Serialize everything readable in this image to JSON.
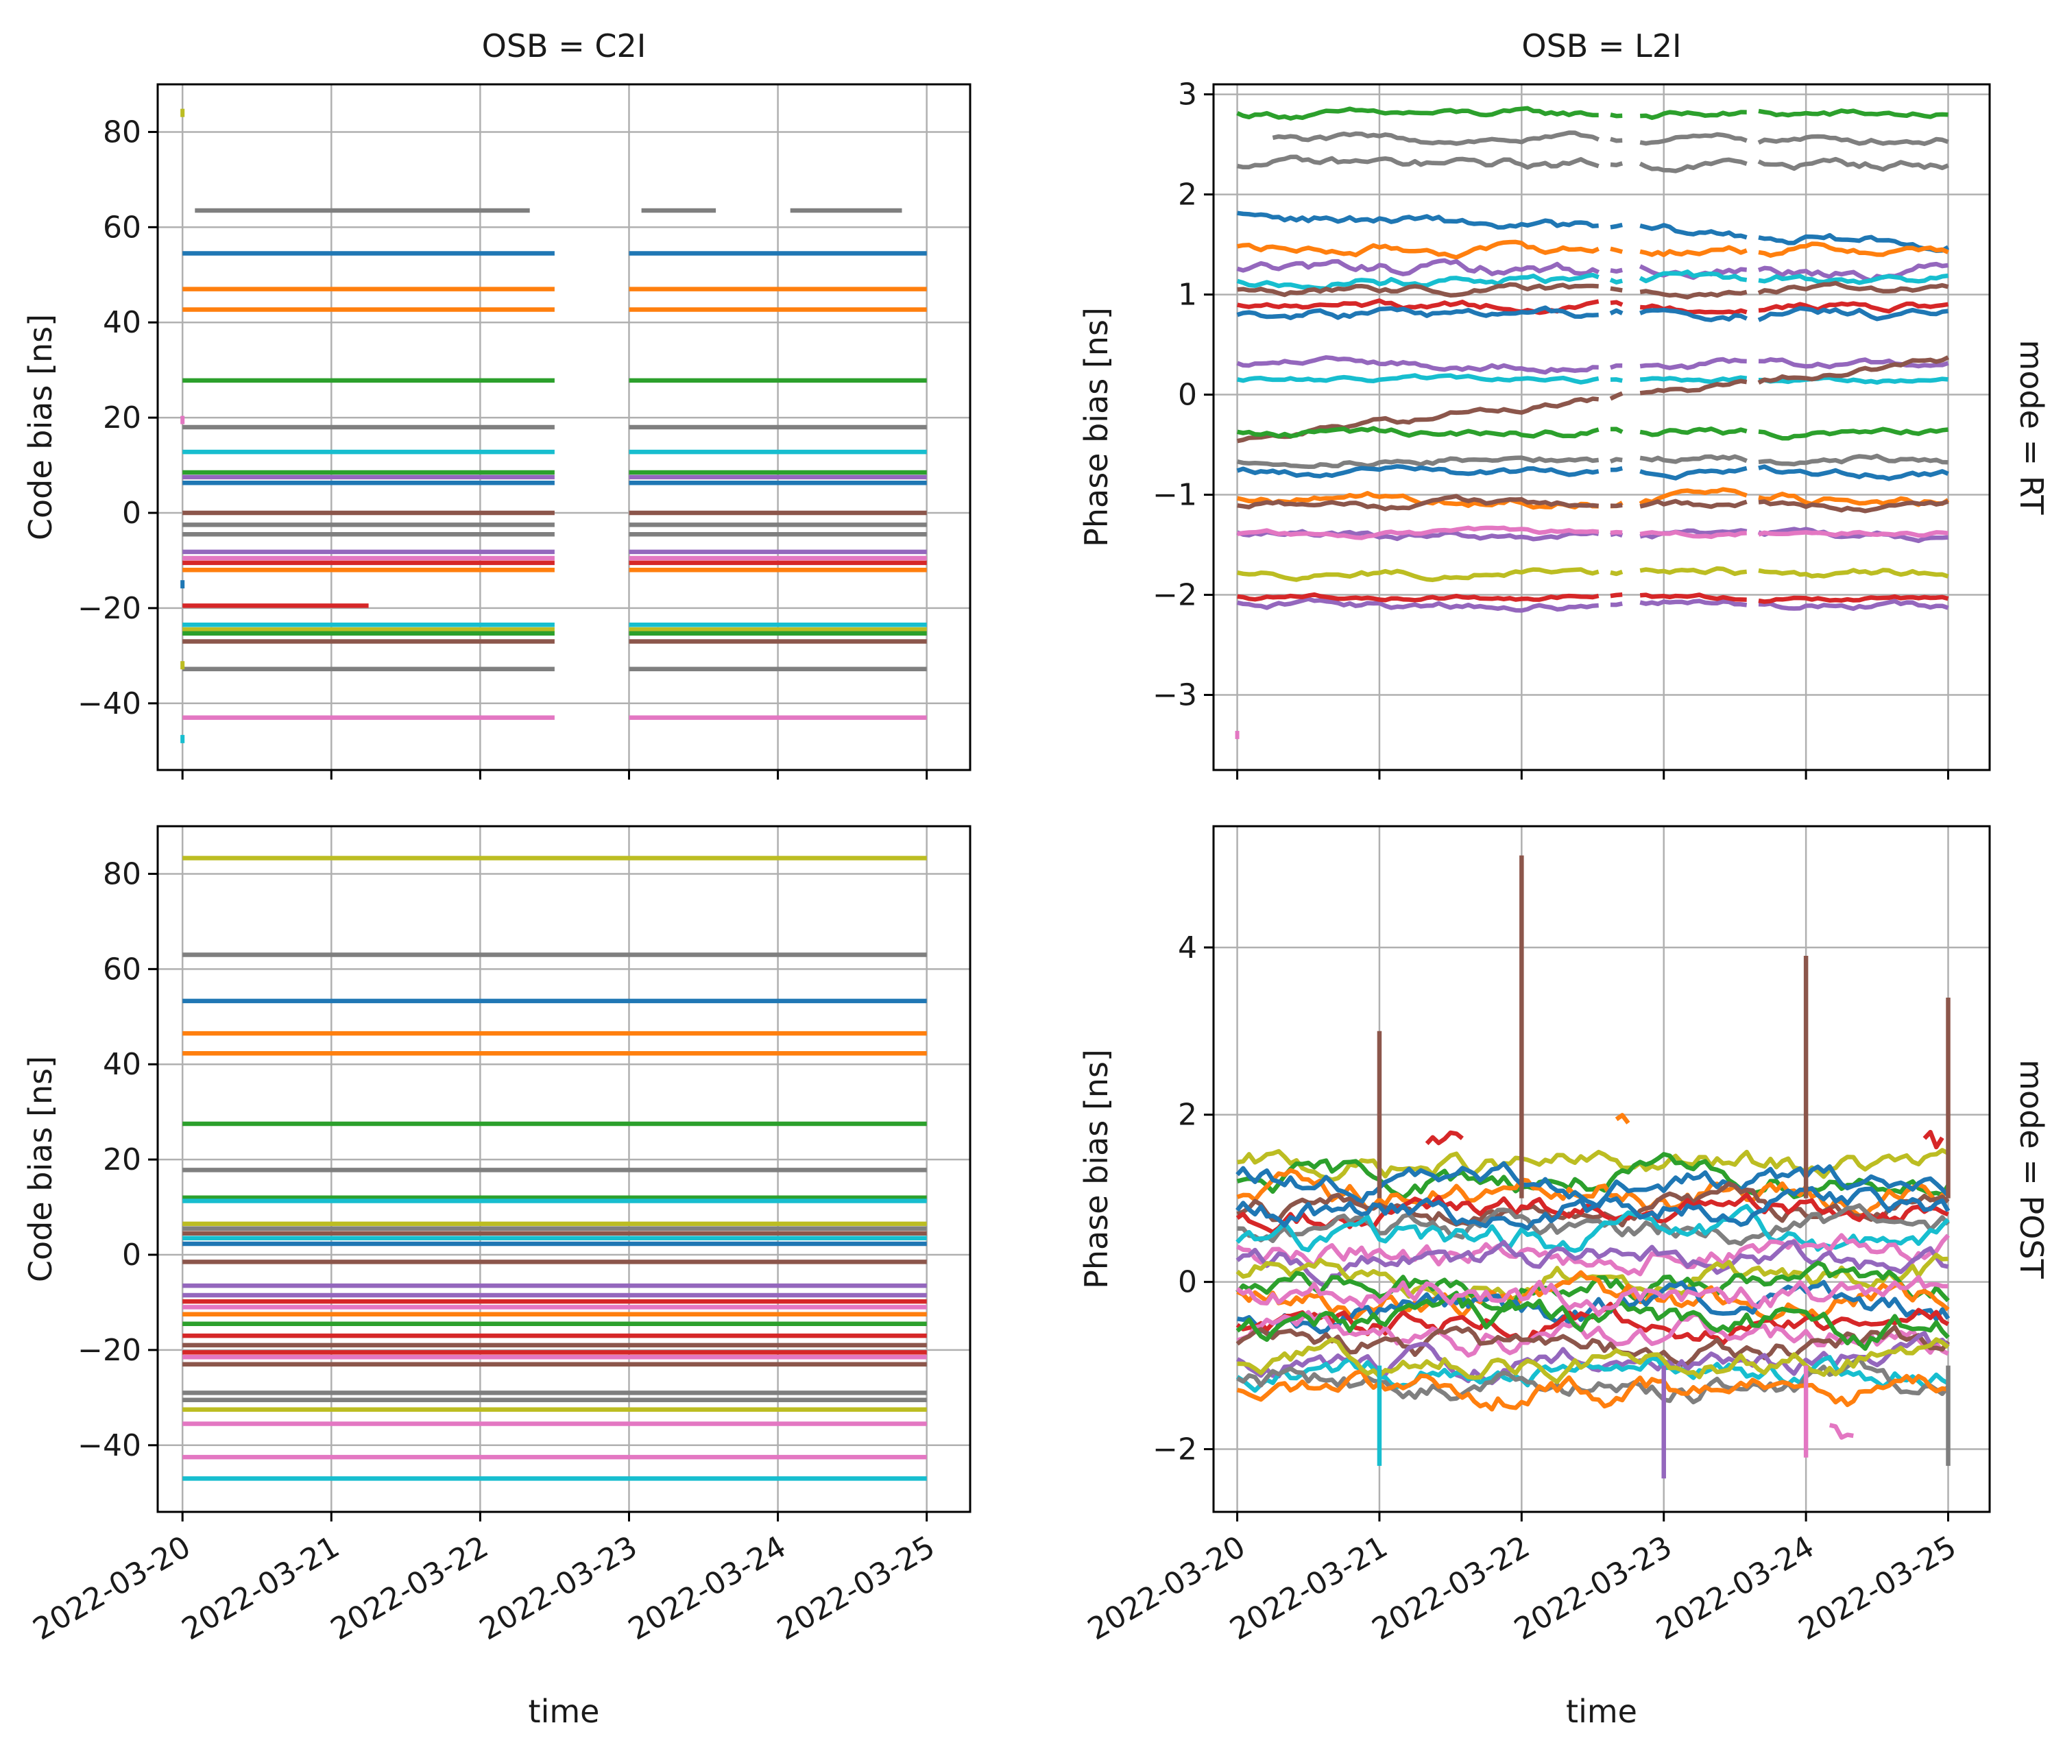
{
  "figure": {
    "palette": [
      "#1f77b4",
      "#ff7f0e",
      "#2ca02c",
      "#d62728",
      "#9467bd",
      "#8c564b",
      "#e377c2",
      "#7f7f7f",
      "#bcbd22",
      "#17becf"
    ]
  },
  "chart_data": [
    {
      "type": "line",
      "panel": "top-left",
      "title": "OSB = C2I",
      "row_title": "",
      "xlabel": "",
      "ylabel": "Code bias [ns]",
      "x_ticks": [],
      "yticks": [
        80,
        60,
        40,
        20,
        0,
        -20,
        -40
      ],
      "ytick_labels": [
        "80",
        "60",
        "40",
        "20",
        "0",
        "−20",
        "−40"
      ],
      "xlim": [
        "2022-03-19 20:00",
        "2022-03-25 07:00"
      ],
      "ylim": [
        -54,
        90
      ],
      "grid": true,
      "x_gaps": [
        [
          "2022-03-22 13:00",
          "2022-03-22 16:00"
        ],
        [
          "2022-03-22 17:00",
          "2022-03-22 22:00"
        ],
        [
          "2022-03-23 14:00",
          "2022-03-23 16:00"
        ],
        [
          "2022-03-23 19:00",
          "2022-03-23 21:00"
        ]
      ],
      "series": [
        {
          "color": "#7f7f7f",
          "x_start": "2022-03-20 02:00",
          "value": 63.5
        },
        {
          "color": "#1f77b4",
          "value": 54.5
        },
        {
          "color": "#ff7f0e",
          "value": 47
        },
        {
          "color": "#ff7f0e",
          "value": 42.7
        },
        {
          "color": "#2ca02c",
          "value": 27.8
        },
        {
          "color": "#7f7f7f",
          "value": 18
        },
        {
          "color": "#17becf",
          "value": 12.8
        },
        {
          "color": "#2ca02c",
          "value": 8.5
        },
        {
          "color": "#9467bd",
          "value": 7.5
        },
        {
          "color": "#1f77b4",
          "value": 6.3
        },
        {
          "color": "#8c564b",
          "value": 0
        },
        {
          "color": "#7f7f7f",
          "value": -2.5
        },
        {
          "color": "#7f7f7f",
          "value": -4.5
        },
        {
          "color": "#9467bd",
          "value": -8.2
        },
        {
          "color": "#e377c2",
          "value": -9.5
        },
        {
          "color": "#d62728",
          "value": -10.5
        },
        {
          "color": "#ff7f0e",
          "value": -12
        },
        {
          "color": "#d62728",
          "value": -19.5,
          "x_end": "2022-03-21 07:00"
        },
        {
          "color": "#17becf",
          "value": -23.5
        },
        {
          "color": "#bcbd22",
          "value": -24.5
        },
        {
          "color": "#2ca02c",
          "value": -25.3
        },
        {
          "color": "#8c564b",
          "value": -27
        },
        {
          "color": "#7f7f7f",
          "value": -32.8
        },
        {
          "color": "#e377c2",
          "value": -43
        }
      ],
      "isolated_points": [
        {
          "x": "2022-03-20 00:00",
          "y": 84,
          "color": "#bcbd22"
        },
        {
          "x": "2022-03-20 00:00",
          "y": 19.5,
          "color": "#e377c2"
        },
        {
          "x": "2022-03-20 00:00",
          "y": -15,
          "color": "#1f77b4"
        },
        {
          "x": "2022-03-20 00:00",
          "y": -32,
          "color": "#bcbd22"
        },
        {
          "x": "2022-03-20 00:00",
          "y": -47.5,
          "color": "#17becf"
        }
      ]
    },
    {
      "type": "line",
      "panel": "top-right",
      "title": "OSB = L2I",
      "row_title": "mode = RT",
      "xlabel": "",
      "ylabel": "Phase bias [ns]",
      "x_ticks": [],
      "yticks": [
        3,
        2,
        1,
        0,
        -1,
        -2,
        -3
      ],
      "ytick_labels": [
        "3",
        "2",
        "1",
        "0",
        "−1",
        "−2",
        "−3"
      ],
      "xlim": [
        "2022-03-19 20:00",
        "2022-03-25 07:00"
      ],
      "ylim": [
        -3.75,
        3.1
      ],
      "grid": true,
      "x_gaps": [
        [
          "2022-03-22 13:00",
          "2022-03-22 15:00"
        ],
        [
          "2022-03-22 17:00",
          "2022-03-22 20:00"
        ],
        [
          "2022-03-23 14:00",
          "2022-03-23 16:00"
        ],
        [
          "2022-03-23 18:00",
          "2022-03-23 19:00"
        ]
      ],
      "series": [
        {
          "color": "#2ca02c",
          "value": 2.8,
          "noise": 0.03
        },
        {
          "color": "#7f7f7f",
          "value": 2.55,
          "noise": 0.03,
          "x_start": "2022-03-20 06:00"
        },
        {
          "color": "#7f7f7f",
          "value": 2.3,
          "noise": 0.04
        },
        {
          "color": "#1f77b4",
          "value": 1.8,
          "noise": 0.04,
          "end_value": 1.5
        },
        {
          "color": "#ff7f0e",
          "value": 1.45,
          "noise": 0.04
        },
        {
          "color": "#9467bd",
          "value": 1.25,
          "noise": 0.05
        },
        {
          "color": "#17becf",
          "value": 1.15,
          "noise": 0.04
        },
        {
          "color": "#8c564b",
          "value": 1.05,
          "noise": 0.03
        },
        {
          "color": "#d62728",
          "value": 0.88,
          "noise": 0.03
        },
        {
          "color": "#1f77b4",
          "value": 0.8,
          "noise": 0.04
        },
        {
          "color": "#9467bd",
          "value": 0.3,
          "noise": 0.03
        },
        {
          "color": "#17becf",
          "value": 0.15,
          "noise": 0.02
        },
        {
          "color": "#8c564b",
          "value": -0.45,
          "noise": 0.03,
          "end_value": 0.35
        },
        {
          "color": "#2ca02c",
          "value": -0.38,
          "noise": 0.03
        },
        {
          "color": "#7f7f7f",
          "value": -0.65,
          "noise": 0.03
        },
        {
          "color": "#1f77b4",
          "value": -0.78,
          "noise": 0.03
        },
        {
          "color": "#ff7f0e",
          "value": -1.05,
          "noise": 0.04
        },
        {
          "color": "#8c564b",
          "value": -1.1,
          "noise": 0.03
        },
        {
          "color": "#9467bd",
          "value": -1.4,
          "noise": 0.03
        },
        {
          "color": "#e377c2",
          "value": -1.38,
          "noise": 0.02
        },
        {
          "color": "#bcbd22",
          "value": -1.78,
          "noise": 0.03
        },
        {
          "color": "#9467bd",
          "value": -2.1,
          "noise": 0.03
        },
        {
          "color": "#d62728",
          "value": -2.03,
          "noise": 0.02
        }
      ],
      "isolated_points": [
        {
          "x": "2022-03-20 00:00",
          "y": -3.4,
          "color": "#e377c2"
        }
      ]
    },
    {
      "type": "line",
      "panel": "bottom-left",
      "title": "",
      "row_title": "",
      "xlabel": "time",
      "ylabel": "Code bias [ns]",
      "x_ticks": [
        "2022-03-20",
        "2022-03-21",
        "2022-03-22",
        "2022-03-23",
        "2022-03-24",
        "2022-03-25"
      ],
      "yticks": [
        80,
        60,
        40,
        20,
        0,
        -20,
        -40
      ],
      "ytick_labels": [
        "80",
        "60",
        "40",
        "20",
        "0",
        "−20",
        "−40"
      ],
      "xlim": [
        "2022-03-19 20:00",
        "2022-03-25 07:00"
      ],
      "ylim": [
        -54,
        90
      ],
      "grid": true,
      "x_gaps": [],
      "series": [
        {
          "color": "#bcbd22",
          "value": 83.3
        },
        {
          "color": "#7f7f7f",
          "value": 63
        },
        {
          "color": "#1f77b4",
          "value": 53.3
        },
        {
          "color": "#ff7f0e",
          "value": 46.5
        },
        {
          "color": "#ff7f0e",
          "value": 42.3
        },
        {
          "color": "#2ca02c",
          "value": 27.5
        },
        {
          "color": "#7f7f7f",
          "value": 17.8
        },
        {
          "color": "#2ca02c",
          "value": 12
        },
        {
          "color": "#17becf",
          "value": 11.3
        },
        {
          "color": "#bcbd22",
          "value": 6.5
        },
        {
          "color": "#7f7f7f",
          "value": 5.5
        },
        {
          "color": "#8c564b",
          "value": 4.5
        },
        {
          "color": "#17becf",
          "value": 3.5
        },
        {
          "color": "#1f77b4",
          "value": 2.3
        },
        {
          "color": "#8c564b",
          "value": -1.5
        },
        {
          "color": "#9467bd",
          "value": -6.5
        },
        {
          "color": "#9467bd",
          "value": -8.5
        },
        {
          "color": "#d62728",
          "value": -9.8
        },
        {
          "color": "#e377c2",
          "value": -11
        },
        {
          "color": "#ff7f0e",
          "value": -12.5
        },
        {
          "color": "#2ca02c",
          "value": -14.5
        },
        {
          "color": "#d62728",
          "value": -17
        },
        {
          "color": "#8c564b",
          "value": -19
        },
        {
          "color": "#d62728",
          "value": -20.5
        },
        {
          "color": "#e377c2",
          "value": -21.5
        },
        {
          "color": "#8c564b",
          "value": -23
        },
        {
          "color": "#7f7f7f",
          "value": -29
        },
        {
          "color": "#7f7f7f",
          "value": -30.5
        },
        {
          "color": "#bcbd22",
          "value": -32.5
        },
        {
          "color": "#e377c2",
          "value": -35.5
        },
        {
          "color": "#e377c2",
          "value": -42.5
        },
        {
          "color": "#17becf",
          "value": -47
        }
      ],
      "isolated_points": []
    },
    {
      "type": "line",
      "panel": "bottom-right",
      "title": "",
      "row_title": "mode = POST",
      "xlabel": "time",
      "ylabel": "Phase bias [ns]",
      "x_ticks": [
        "2022-03-20",
        "2022-03-21",
        "2022-03-22",
        "2022-03-23",
        "2022-03-24",
        "2022-03-25"
      ],
      "yticks": [
        4,
        2,
        0,
        -2
      ],
      "ytick_labels": [
        "4",
        "2",
        "0",
        "−2"
      ],
      "xlim": [
        "2022-03-19 20:00",
        "2022-03-25 07:00"
      ],
      "ylim": [
        -2.75,
        5.45
      ],
      "grid": true,
      "x_gaps": [],
      "day_offsets": true,
      "series": [
        {
          "color": "#bcbd22",
          "value": 1.5,
          "noise": 0.12
        },
        {
          "color": "#2ca02c",
          "value": 1.35,
          "noise": 0.12
        },
        {
          "color": "#ff7f0e",
          "value": 1.15,
          "noise": 0.14
        },
        {
          "color": "#1f77b4",
          "value": 1.3,
          "noise": 0.12
        },
        {
          "color": "#8c564b",
          "value": 1.0,
          "noise": 0.12
        },
        {
          "color": "#d62728",
          "value": 0.9,
          "noise": 0.12
        },
        {
          "color": "#7f7f7f",
          "value": 0.75,
          "noise": 0.12
        },
        {
          "color": "#17becf",
          "value": 0.6,
          "noise": 0.14
        },
        {
          "color": "#e377c2",
          "value": 0.45,
          "noise": 0.14
        },
        {
          "color": "#9467bd",
          "value": 0.3,
          "noise": 0.12
        },
        {
          "color": "#bcbd22",
          "value": 0.15,
          "noise": 0.14
        },
        {
          "color": "#2ca02c",
          "value": 0.0,
          "noise": 0.12
        },
        {
          "color": "#ff7f0e",
          "value": -0.15,
          "noise": 0.14
        },
        {
          "color": "#1f77b4",
          "value": -0.3,
          "noise": 0.14
        },
        {
          "color": "#d62728",
          "value": -0.45,
          "noise": 0.12
        },
        {
          "color": "#e377c2",
          "value": -0.6,
          "noise": 0.14
        },
        {
          "color": "#8c564b",
          "value": -0.75,
          "noise": 0.12
        },
        {
          "color": "#9467bd",
          "value": -0.9,
          "noise": 0.12
        },
        {
          "color": "#17becf",
          "value": -1.05,
          "noise": 0.12
        },
        {
          "color": "#7f7f7f",
          "value": -1.2,
          "noise": 0.12
        },
        {
          "color": "#ff7f0e",
          "value": -1.3,
          "noise": 0.12
        },
        {
          "color": "#2ca02c",
          "value": -0.5,
          "noise": 0.14
        },
        {
          "color": "#1f77b4",
          "value": 0.85,
          "noise": 0.14
        },
        {
          "color": "#e377c2",
          "value": -0.2,
          "noise": 0.14
        },
        {
          "color": "#bcbd22",
          "value": -0.95,
          "noise": 0.12
        }
      ],
      "spikes": [
        {
          "x": "2022-03-21 00:00",
          "y": 3.0,
          "color": "#8c564b"
        },
        {
          "x": "2022-03-22 00:00",
          "y": 5.1,
          "color": "#8c564b"
        },
        {
          "x": "2022-03-24 00:00",
          "y": 3.9,
          "color": "#8c564b"
        },
        {
          "x": "2022-03-25 00:00",
          "y": 3.4,
          "color": "#8c564b"
        },
        {
          "x": "2022-03-21 00:00",
          "y": -2.2,
          "color": "#17becf"
        },
        {
          "x": "2022-03-23 00:00",
          "y": -2.35,
          "color": "#9467bd"
        },
        {
          "x": "2022-03-24 00:00",
          "y": -2.1,
          "color": "#e377c2"
        },
        {
          "x": "2022-03-25 00:00",
          "y": -2.2,
          "color": "#7f7f7f"
        }
      ],
      "bumps": [
        {
          "x_start": "2022-03-21 08:00",
          "x_end": "2022-03-21 14:00",
          "y": 1.75,
          "color": "#d62728"
        },
        {
          "x_start": "2022-03-22 16:00",
          "x_end": "2022-03-22 18:00",
          "y": 1.9,
          "color": "#ff7f0e"
        },
        {
          "x_start": "2022-03-24 04:00",
          "x_end": "2022-03-24 08:00",
          "y": -1.8,
          "color": "#e377c2"
        },
        {
          "x_start": "2022-03-24 20:00",
          "x_end": "2022-03-24 23:00",
          "y": 1.7,
          "color": "#d62728"
        }
      ],
      "isolated_points": []
    }
  ]
}
